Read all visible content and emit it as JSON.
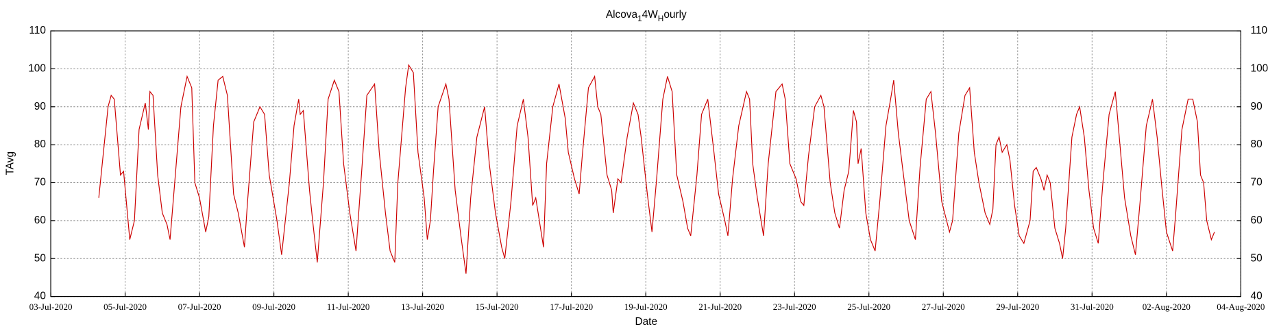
{
  "chart_data": {
    "type": "line",
    "title": [
      "Alcova",
      "1",
      "4W",
      "H",
      "ourly"
    ],
    "x_label": "Date",
    "y_label": "TAvg",
    "grid": true,
    "right_axis_mirror": true,
    "xlim": [
      "2020-07-03T00:00",
      "2020-08-04T00:00"
    ],
    "xticks": [
      {
        "value": "2020-07-03T00:00",
        "label": "03-Jul-2020"
      },
      {
        "value": "2020-07-05T00:00",
        "label": "05-Jul-2020"
      },
      {
        "value": "2020-07-07T00:00",
        "label": "07-Jul-2020"
      },
      {
        "value": "2020-07-09T00:00",
        "label": "09-Jul-2020"
      },
      {
        "value": "2020-07-11T00:00",
        "label": "11-Jul-2020"
      },
      {
        "value": "2020-07-13T00:00",
        "label": "13-Jul-2020"
      },
      {
        "value": "2020-07-15T00:00",
        "label": "15-Jul-2020"
      },
      {
        "value": "2020-07-17T00:00",
        "label": "17-Jul-2020"
      },
      {
        "value": "2020-07-19T00:00",
        "label": "19-Jul-2020"
      },
      {
        "value": "2020-07-21T00:00",
        "label": "21-Jul-2020"
      },
      {
        "value": "2020-07-23T00:00",
        "label": "23-Jul-2020"
      },
      {
        "value": "2020-07-25T00:00",
        "label": "25-Jul-2020"
      },
      {
        "value": "2020-07-27T00:00",
        "label": "27-Jul-2020"
      },
      {
        "value": "2020-07-29T00:00",
        "label": "29-Jul-2020"
      },
      {
        "value": "2020-07-31T00:00",
        "label": "31-Jul-2020"
      },
      {
        "value": "2020-08-02T00:00",
        "label": "02-Aug-2020"
      },
      {
        "value": "2020-08-04T00:00",
        "label": "04-Aug-2020"
      }
    ],
    "ylim": [
      40,
      110
    ],
    "yticks": [
      40,
      50,
      60,
      70,
      80,
      90,
      100,
      110
    ],
    "x": [
      "2020-07-04T07:00",
      "2020-07-04T13:00",
      "2020-07-04T15:00",
      "2020-07-04T17:00",
      "2020-07-04T21:00",
      "2020-07-04T23:00",
      "2020-07-05T03:00",
      "2020-07-05T06:00",
      "2020-07-05T09:00",
      "2020-07-05T13:00",
      "2020-07-05T15:00",
      "2020-07-05T16:00",
      "2020-07-05T18:00",
      "2020-07-05T21:00",
      "2020-07-06T00:00",
      "2020-07-06T03:00",
      "2020-07-06T05:00",
      "2020-07-06T08:00",
      "2020-07-06T12:00",
      "2020-07-06T16:00",
      "2020-07-06T19:00",
      "2020-07-06T21:00",
      "2020-07-07T00:00",
      "2020-07-07T04:00",
      "2020-07-07T06:00",
      "2020-07-07T09:00",
      "2020-07-07T12:00",
      "2020-07-07T15:00",
      "2020-07-07T18:00",
      "2020-07-07T22:00",
      "2020-07-08T01:00",
      "2020-07-08T05:00",
      "2020-07-08T07:00",
      "2020-07-08T11:00",
      "2020-07-08T15:00",
      "2020-07-08T18:00",
      "2020-07-08T21:00",
      "2020-07-09T02:00",
      "2020-07-09T05:00",
      "2020-07-09T10:00",
      "2020-07-09T13:00",
      "2020-07-09T16:00",
      "2020-07-09T17:00",
      "2020-07-09T19:00",
      "2020-07-09T23:00",
      "2020-07-10T01:00",
      "2020-07-10T04:00",
      "2020-07-10T08:00",
      "2020-07-10T11:00",
      "2020-07-10T15:00",
      "2020-07-10T18:00",
      "2020-07-10T21:00",
      "2020-07-11T01:00",
      "2020-07-11T05:00",
      "2020-07-11T09:00",
      "2020-07-11T12:00",
      "2020-07-11T17:00",
      "2020-07-11T20:00",
      "2020-07-12T00:00",
      "2020-07-12T03:00",
      "2020-07-12T06:00",
      "2020-07-12T08:00",
      "2020-07-12T13:00",
      "2020-07-12T15:00",
      "2020-07-12T18:00",
      "2020-07-12T21:00",
      "2020-07-13T01:00",
      "2020-07-13T03:00",
      "2020-07-13T05:00",
      "2020-07-13T07:00",
      "2020-07-13T10:00",
      "2020-07-13T15:00",
      "2020-07-13T17:00",
      "2020-07-13T21:00",
      "2020-07-14T01:00",
      "2020-07-14T04:00",
      "2020-07-14T07:00",
      "2020-07-14T11:00",
      "2020-07-14T16:00",
      "2020-07-14T19:00",
      "2020-07-14T23:00",
      "2020-07-15T03:00",
      "2020-07-15T05:00",
      "2020-07-15T09:00",
      "2020-07-15T13:00",
      "2020-07-15T17:00",
      "2020-07-15T20:00",
      "2020-07-15T23:00",
      "2020-07-16T01:00",
      "2020-07-16T06:00",
      "2020-07-16T08:00",
      "2020-07-16T12:00",
      "2020-07-16T16:00",
      "2020-07-16T20:00",
      "2020-07-16T22:00",
      "2020-07-17T02:00",
      "2020-07-17T05:00",
      "2020-07-17T07:00",
      "2020-07-17T11:00",
      "2020-07-17T15:00",
      "2020-07-17T17:00",
      "2020-07-17T19:00",
      "2020-07-17T23:00",
      "2020-07-18T02:00",
      "2020-07-18T03:00",
      "2020-07-18T06:00",
      "2020-07-18T08:00",
      "2020-07-18T12:00",
      "2020-07-18T16:00",
      "2020-07-18T19:00",
      "2020-07-18T21:00",
      "2020-07-19T01:00",
      "2020-07-19T04:00",
      "2020-07-19T07:00",
      "2020-07-19T11:00",
      "2020-07-19T14:00",
      "2020-07-19T17:00",
      "2020-07-19T20:00",
      "2020-07-20T00:00",
      "2020-07-20T03:00",
      "2020-07-20T05:00",
      "2020-07-20T09:00",
      "2020-07-20T12:00",
      "2020-07-20T16:00",
      "2020-07-20T20:00",
      "2020-07-20T23:00",
      "2020-07-21T03:00",
      "2020-07-21T05:00",
      "2020-07-21T08:00",
      "2020-07-21T12:00",
      "2020-07-21T17:00",
      "2020-07-21T19:00",
      "2020-07-21T21:00",
      "2020-07-22T00:00",
      "2020-07-22T04:00",
      "2020-07-22T07:00",
      "2020-07-22T12:00",
      "2020-07-22T16:00",
      "2020-07-22T18:00",
      "2020-07-22T21:00",
      "2020-07-23T01:00",
      "2020-07-23T04:00",
      "2020-07-23T06:00",
      "2020-07-23T09:00",
      "2020-07-23T13:00",
      "2020-07-23T17:00",
      "2020-07-23T19:00",
      "2020-07-23T23:00",
      "2020-07-24T02:00",
      "2020-07-24T05:00",
      "2020-07-24T08:00",
      "2020-07-24T11:00",
      "2020-07-24T14:00",
      "2020-07-24T16:00",
      "2020-07-24T17:00",
      "2020-07-24T19:00",
      "2020-07-24T22:00",
      "2020-07-25T01:00",
      "2020-07-25T04:00",
      "2020-07-25T07:00",
      "2020-07-25T11:00",
      "2020-07-25T14:00",
      "2020-07-25T16:00",
      "2020-07-25T19:00",
      "2020-07-25T22:00",
      "2020-07-26T02:00",
      "2020-07-26T06:00",
      "2020-07-26T09:00",
      "2020-07-26T13:00",
      "2020-07-26T16:00",
      "2020-07-26T19:00",
      "2020-07-26T23:00",
      "2020-07-27T04:00",
      "2020-07-27T06:00",
      "2020-07-27T10:00",
      "2020-07-27T14:00",
      "2020-07-27T17:00",
      "2020-07-27T20:00",
      "2020-07-27T23:00",
      "2020-07-28T03:00",
      "2020-07-28T06:00",
      "2020-07-28T08:00",
      "2020-07-28T10:00",
      "2020-07-28T12:00",
      "2020-07-28T14:00",
      "2020-07-28T17:00",
      "2020-07-28T19:00",
      "2020-07-28T22:00",
      "2020-07-29T01:00",
      "2020-07-29T04:00",
      "2020-07-29T08:00",
      "2020-07-29T10:00",
      "2020-07-29T12:00",
      "2020-07-29T15:00",
      "2020-07-29T17:00",
      "2020-07-29T19:00",
      "2020-07-29T21:00",
      "2020-07-30T00:00",
      "2020-07-30T03:00",
      "2020-07-30T05:00",
      "2020-07-30T07:00",
      "2020-07-30T11:00",
      "2020-07-30T14:00",
      "2020-07-30T16:00",
      "2020-07-30T19:00",
      "2020-07-30T22:00",
      "2020-07-31T01:00",
      "2020-07-31T04:00",
      "2020-07-31T07:00",
      "2020-07-31T11:00",
      "2020-07-31T15:00",
      "2020-07-31T18:00",
      "2020-07-31T21:00",
      "2020-08-01T01:00",
      "2020-08-01T04:00",
      "2020-08-01T07:00",
      "2020-08-01T11:00",
      "2020-08-01T15:00",
      "2020-08-01T18:00",
      "2020-08-01T21:00",
      "2020-08-02T00:00",
      "2020-08-02T04:00",
      "2020-08-02T06:00",
      "2020-08-02T10:00",
      "2020-08-02T14:00",
      "2020-08-02T17:00",
      "2020-08-02T20:00",
      "2020-08-02T22:00",
      "2020-08-03T00:00",
      "2020-08-03T02:00",
      "2020-08-03T05:00",
      "2020-08-03T07:00"
    ],
    "series": [
      {
        "color": "#cc0000",
        "values": [
          66,
          90,
          93,
          92,
          72,
          73,
          55,
          60,
          84,
          91,
          84,
          94,
          93,
          72,
          62,
          59,
          55,
          70,
          90,
          98,
          95,
          70,
          66,
          57,
          61,
          85,
          97,
          98,
          93,
          67,
          62,
          53,
          65,
          86,
          90,
          88,
          72,
          60,
          51,
          70,
          85,
          92,
          88,
          89,
          68,
          60,
          49,
          70,
          92,
          97,
          94,
          75,
          62,
          52,
          75,
          93,
          96,
          78,
          62,
          52,
          49,
          70,
          95,
          101,
          99,
          78,
          66,
          55,
          60,
          73,
          90,
          96,
          92,
          68,
          55,
          46,
          66,
          82,
          90,
          75,
          62,
          53,
          50,
          65,
          85,
          92,
          82,
          64,
          66,
          53,
          75,
          90,
          96,
          87,
          78,
          71,
          67,
          77,
          95,
          98,
          90,
          88,
          72,
          68,
          62,
          71,
          70,
          82,
          91,
          88,
          82,
          67,
          57,
          71,
          92,
          98,
          94,
          72,
          65,
          58,
          56,
          72,
          88,
          92,
          78,
          67,
          60,
          56,
          71,
          85,
          94,
          92,
          75,
          66,
          56,
          75,
          94,
          96,
          92,
          75,
          71,
          65,
          64,
          77,
          90,
          93,
          90,
          70,
          62,
          58,
          68,
          73,
          89,
          86,
          75,
          79,
          62,
          55,
          52,
          65,
          85,
          92,
          97,
          83,
          73,
          60,
          55,
          74,
          92,
          94,
          83,
          65,
          57,
          60,
          83,
          93,
          95,
          78,
          70,
          62,
          59,
          63,
          80,
          82,
          78,
          80,
          76,
          64,
          56,
          54,
          60,
          73,
          74,
          71,
          68,
          72,
          70,
          58,
          54,
          50,
          58,
          82,
          88,
          90,
          82,
          68,
          58,
          54,
          70,
          88,
          94,
          80,
          66,
          56,
          51,
          65,
          85,
          92,
          82,
          69,
          57,
          52,
          62,
          84,
          92,
          92,
          86,
          72,
          70,
          60,
          55,
          57
        ]
      }
    ]
  }
}
